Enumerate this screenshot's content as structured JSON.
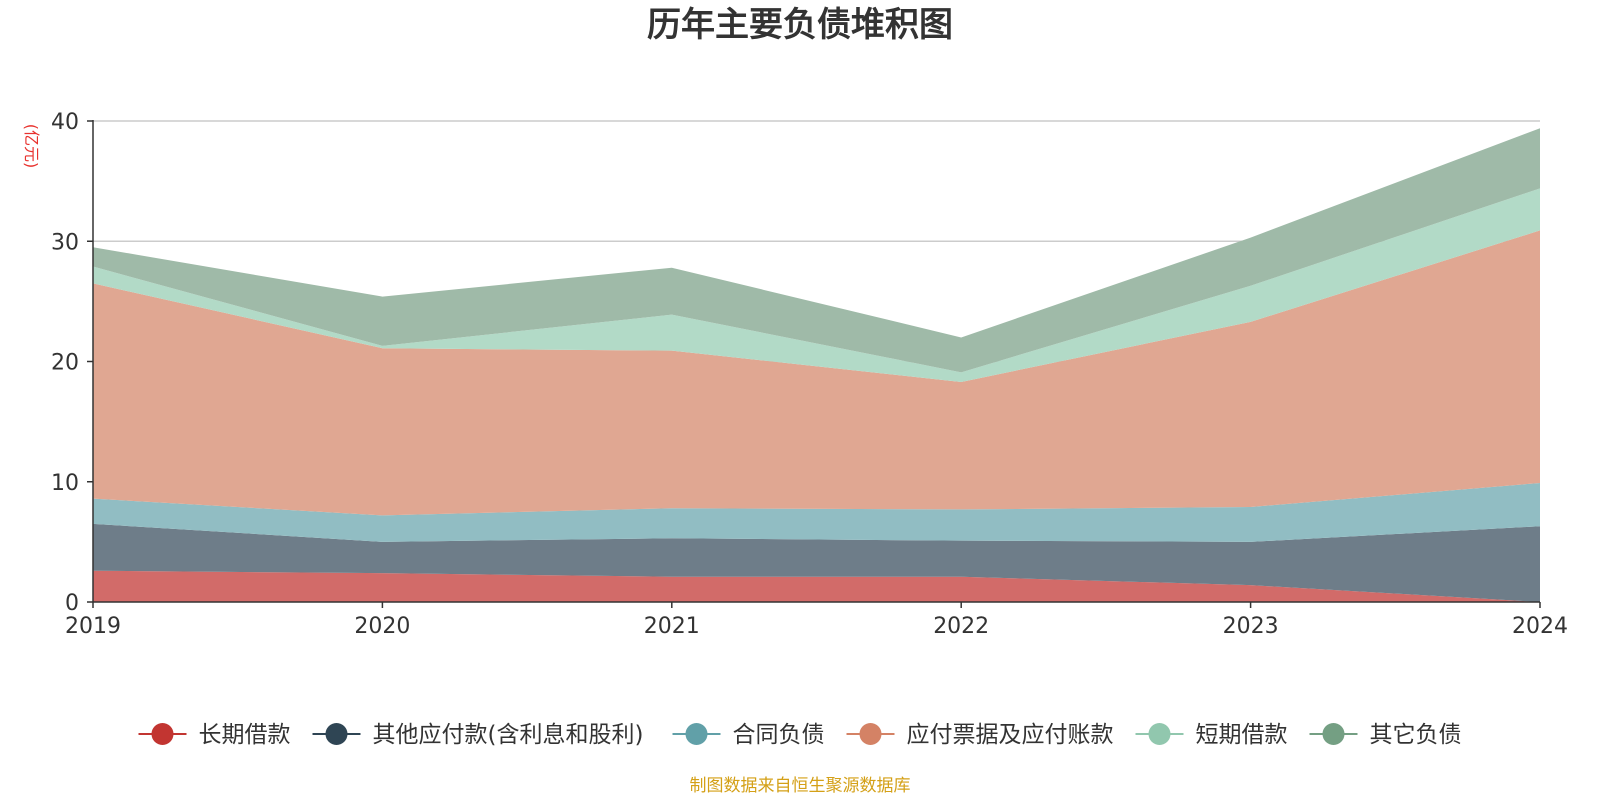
{
  "chart_data": {
    "type": "area",
    "stacked": true,
    "title": "历年主要负债堆积图",
    "unit_label": "(亿元)",
    "source_note": "制图数据来自恒生聚源数据库",
    "x": [
      "2019",
      "2020",
      "2021",
      "2022",
      "2023",
      "2024"
    ],
    "ylim": [
      0,
      40
    ],
    "yticks": [
      0,
      10,
      20,
      30,
      40
    ],
    "grid": true,
    "legend_position": "bottom",
    "series": [
      {
        "name": "长期借款",
        "color": "#c23531",
        "fill": "#d26b69",
        "values": [
          2.6,
          2.4,
          2.1,
          2.1,
          1.4,
          0.0
        ]
      },
      {
        "name": "其他应付款(含利息和股利)",
        "color": "#2f4554",
        "fill": "#6e7d89",
        "values": [
          3.9,
          2.6,
          3.2,
          3.0,
          3.6,
          6.3
        ]
      },
      {
        "name": "合同负债",
        "color": "#61a0a8",
        "fill": "#91bdc3",
        "values": [
          2.1,
          2.2,
          2.5,
          2.6,
          2.9,
          3.6
        ]
      },
      {
        "name": "应付票据及应付账款",
        "color": "#d48265",
        "fill": "#e0a792",
        "values": [
          17.9,
          13.9,
          13.1,
          10.6,
          15.4,
          21.0
        ]
      },
      {
        "name": "短期借款",
        "color": "#91c7ae",
        "fill": "#b2dac7",
        "values": [
          1.4,
          0.2,
          3.0,
          0.8,
          3.0,
          3.5
        ]
      },
      {
        "name": "其它负债",
        "color": "#749f83",
        "fill": "#9fbaa8",
        "values": [
          1.6,
          4.1,
          3.9,
          2.9,
          4.0,
          5.0
        ]
      }
    ]
  }
}
